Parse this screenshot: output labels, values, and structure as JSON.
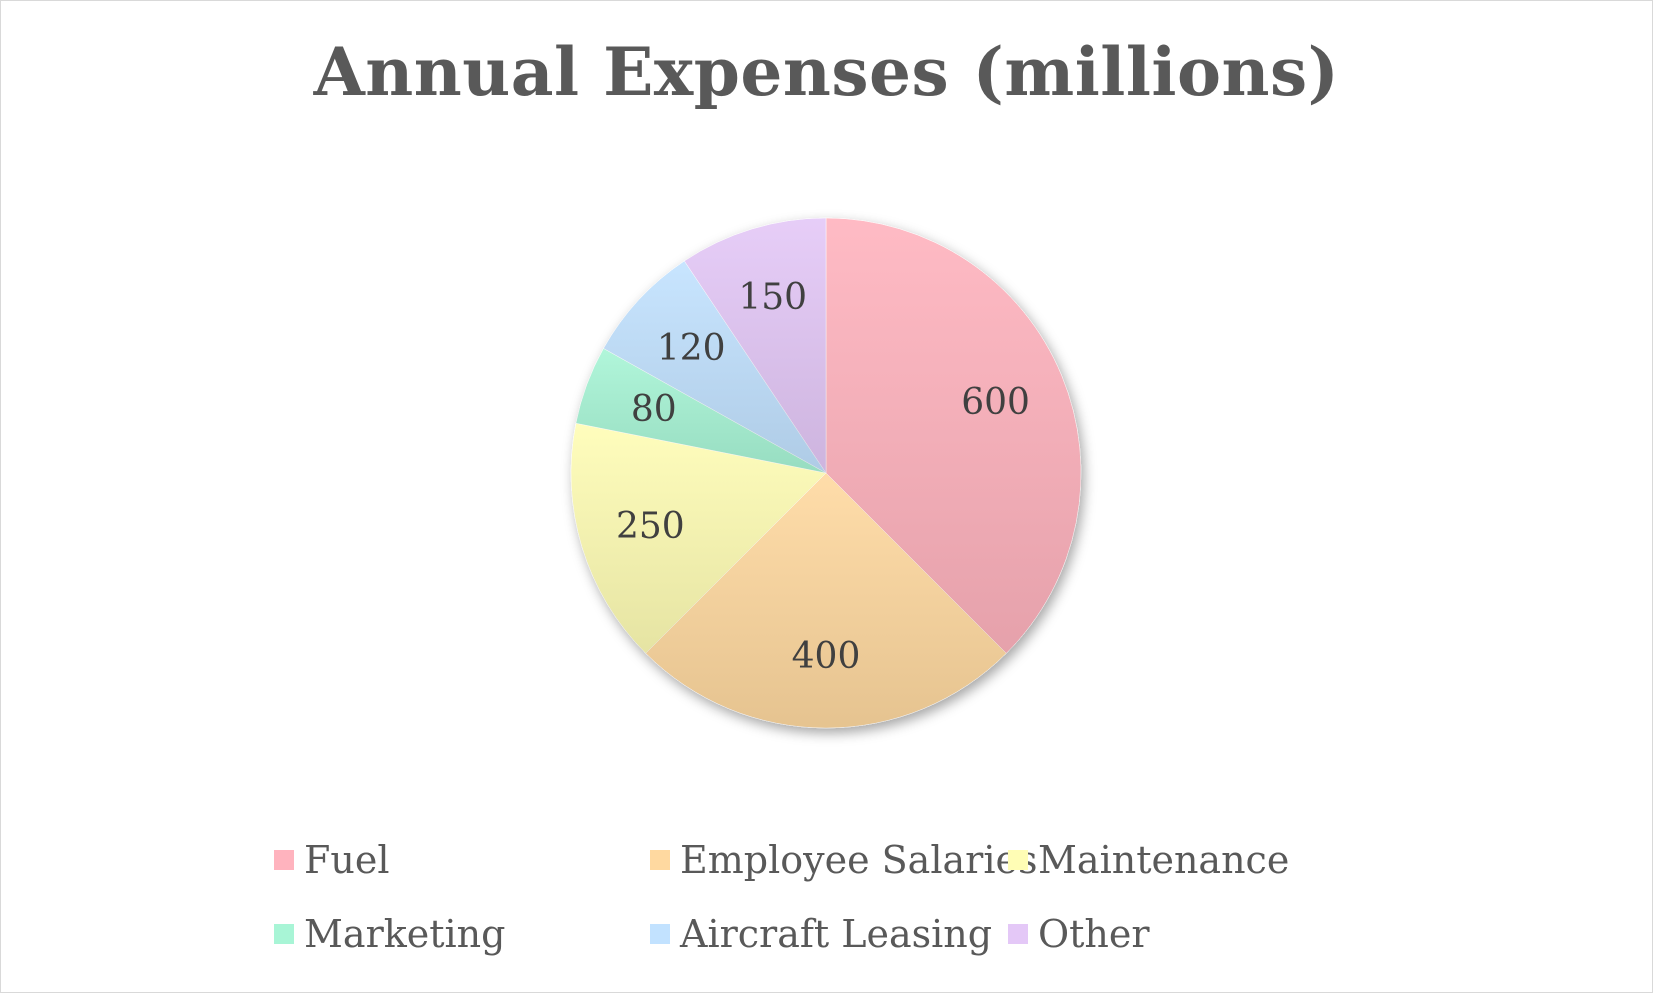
{
  "chart_data": {
    "type": "pie",
    "title": "Annual Expenses (millions)",
    "categories": [
      "Fuel",
      "Employee Salaries",
      "Maintenance",
      "Marketing",
      "Aircraft Leasing",
      "Other"
    ],
    "values": [
      600,
      400,
      250,
      80,
      120,
      150
    ],
    "data_labels": [
      "600",
      "400",
      "250",
      "80",
      "120",
      "150"
    ],
    "colors": [
      "#ffb3be",
      "#ffd9a0",
      "#fffdb5",
      "#a8f5d6",
      "#c2e2ff",
      "#e4c8f7"
    ],
    "legend_position": "bottom",
    "start_angle": "12 o'clock",
    "direction": "clockwise"
  }
}
